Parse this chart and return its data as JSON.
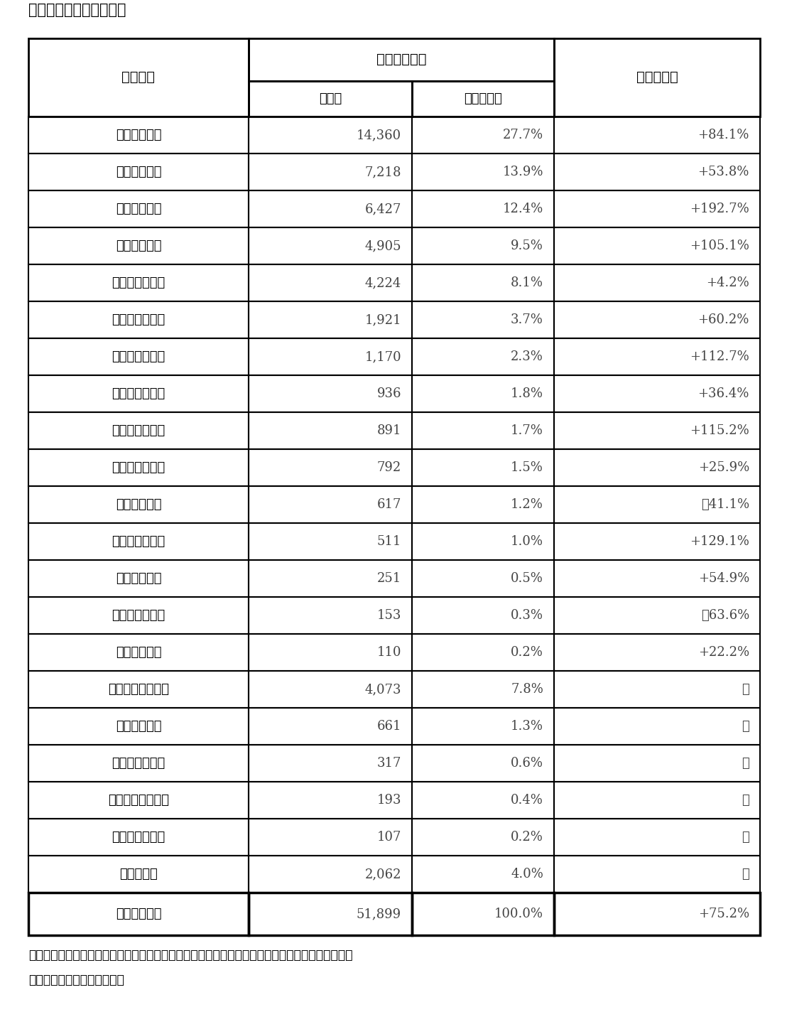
{
  "title": "〈外国人宿泊客延べ数〉",
  "header1": "国・地域",
  "header2": "宿泊客延べ数",
  "header3": "対前年増減",
  "subheader_col2": "人　泊",
  "subheader_col3": "構　成　比",
  "rows": [
    [
      "台　　　　湾",
      "14,360",
      "27.7%",
      "+84.1%"
    ],
    [
      "韓　　　　国",
      "7,218",
      "13.9%",
      "+53.8%"
    ],
    [
      "香　　　　港",
      "6,427",
      "12.4%",
      "+192.7%"
    ],
    [
      "中　　　　国",
      "4,905",
      "9.5%",
      "+105.1%"
    ],
    [
      "ア　メ　リ　カ",
      "4,224",
      "8.1%",
      "+4.2%"
    ],
    [
      "フ　ラ　ン　ス",
      "1,921",
      "3.7%",
      "+60.2%"
    ],
    [
      "ド　　イ　　ツ",
      "1,170",
      "2.3%",
      "+112.7%"
    ],
    [
      "ロ　　シ　　ア",
      "936",
      "1.8%",
      "+36.4%"
    ],
    [
      "イ　ギ　リ　ス",
      "891",
      "1.7%",
      "+115.2%"
    ],
    [
      "オーストラリア",
      "792",
      "1.5%",
      "+25.9%"
    ],
    [
      "タ　　　　イ",
      "617",
      "1.2%",
      "－41.1%"
    ],
    [
      "カ　　ナ　　ダ",
      "511",
      "1.0%",
      "+129.1%"
    ],
    [
      "シンガポール",
      "251",
      "0.5%",
      "+54.9%"
    ],
    [
      "イ　　ン　　ド",
      "153",
      "0.3%",
      "－63.6%"
    ],
    [
      "マ　レーシア",
      "110",
      "0.2%",
      "+22.2%"
    ],
    [
      "その他ヨーロッパ",
      "4,073",
      "7.8%",
      "－"
    ],
    [
      "その他アジア",
      "661",
      "1.3%",
      "－"
    ],
    [
      "ア　フ　リ　カ",
      "317",
      "0.6%",
      "－"
    ],
    [
      "その他オセアニア",
      "193",
      "0.4%",
      "－"
    ],
    [
      "中　　南　　米",
      "107",
      "0.2%",
      "－"
    ],
    [
      "そ　の　他",
      "2,062",
      "4.0%",
      "－"
    ],
    [
      "合　　　　計",
      "51,899",
      "100.0%",
      "+75.2%"
    ]
  ],
  "footnote1": "※「その他ヨーロッパ」、「その他アジア」、「アフリカ」、「その他オセアニア」、「中南米」",
  "footnote2": "　について項目を追加した。",
  "bg_color": "#ffffff",
  "text_color": "#000000",
  "border_color": "#000000",
  "col1_color": "#333333",
  "num_color": "#555555"
}
